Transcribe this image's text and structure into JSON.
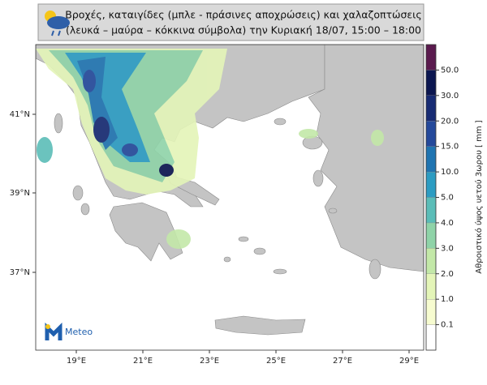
{
  "header": {
    "title_lines": [
      "Βροχές, καταιγίδες (μπλε - πράσινες αποχρώσεις) και χαλαζοπτώσεις",
      "(λευκά – μαύρα – κόκκινα σύμβολα) την Κυριακή 18/07, 15:00 – 18:00"
    ]
  },
  "map": {
    "lat_labels": [
      "41°N",
      "39°N",
      "37°N"
    ],
    "lon_labels": [
      "19°E",
      "21°E",
      "23°E",
      "25°E",
      "27°E",
      "29°E"
    ]
  },
  "colorbar": {
    "label": "Αθροιστικό ύψος υετού 3ωρου [ mm ]",
    "ticks": [
      0.1,
      {
        "value": 1,
        "label": "1.0"
      },
      {
        "value": 2,
        "label": "2.0"
      },
      {
        "value": 3,
        "label": "3.0"
      },
      {
        "value": 4,
        "label": "4.0"
      },
      {
        "value": 5,
        "label": "5.0"
      },
      {
        "value": 10,
        "label": "10.0"
      },
      {
        "value": 15,
        "label": "15.0"
      },
      {
        "value": 20,
        "label": "20.0"
      },
      {
        "value": 30,
        "label": "30.0"
      },
      {
        "value": 50,
        "label": "50.0"
      }
    ],
    "colors": [
      "#ffffff",
      "#f7fcd0",
      "#e4f5b8",
      "#c3e8a8",
      "#8fd3a8",
      "#5bbdb8",
      "#2c9cc2",
      "#1f74b1",
      "#24499b",
      "#172b73",
      "#0b1650",
      "#5a1a4e"
    ]
  },
  "logo": {
    "text": "Meteo"
  }
}
